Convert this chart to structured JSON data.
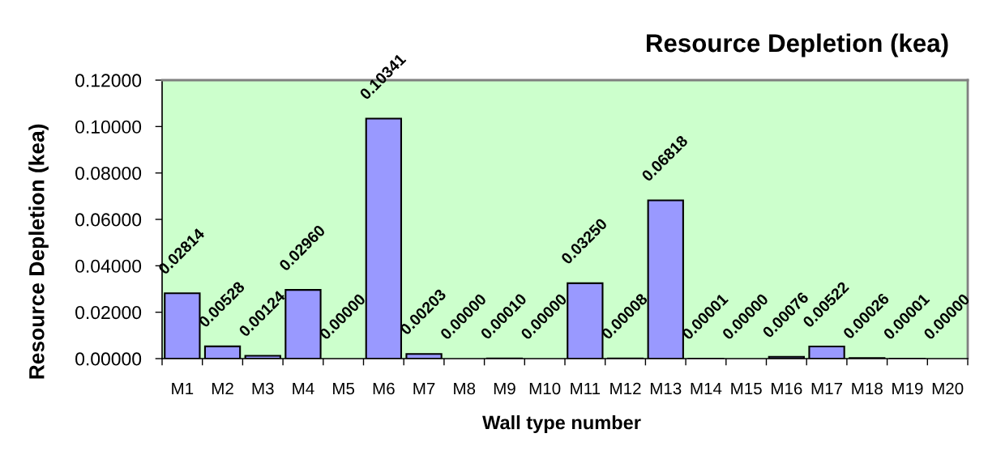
{
  "chart_data": {
    "type": "bar",
    "title": "Resource Depletion (kea)",
    "xlabel": "Wall type number",
    "ylabel": "Resource Depletion (kea)",
    "categories": [
      "M1",
      "M2",
      "M3",
      "M4",
      "M5",
      "M6",
      "M7",
      "M8",
      "M9",
      "M10",
      "M11",
      "M12",
      "M13",
      "M14",
      "M15",
      "M16",
      "M17",
      "M18",
      "M19",
      "M20"
    ],
    "values": [
      0.02814,
      0.00528,
      0.00124,
      0.0296,
      0.0,
      0.10341,
      0.00203,
      0.0,
      0.0001,
      0.0,
      0.0325,
      8e-05,
      0.06818,
      1e-05,
      0.0,
      0.00076,
      0.00522,
      0.00026,
      1e-05,
      0.0
    ],
    "value_labels": [
      "0.02814",
      "0.00528",
      "0.00124",
      "0.02960",
      "0.00000",
      "0.10341",
      "0.00203",
      "0.00000",
      "0.00010",
      "0.00000",
      "0.03250",
      "0.00008",
      "0.06818",
      "0.00001",
      "0.00000",
      "0.00076",
      "0.00522",
      "0.00026",
      "0.00001",
      "0.00000"
    ],
    "color": "#9999ff",
    "ylim": [
      0,
      0.12
    ],
    "yticks": [
      {
        "value": 0,
        "label": "0.00000"
      },
      {
        "value": 0.02,
        "label": "0.02000"
      },
      {
        "value": 0.04,
        "label": "0.04000"
      },
      {
        "value": 0.06,
        "label": "0.06000"
      },
      {
        "value": 0.08,
        "label": "0.08000"
      },
      {
        "value": 0.1,
        "label": "0.10000"
      },
      {
        "value": 0.12,
        "label": "0.12000"
      }
    ],
    "grid": false
  }
}
